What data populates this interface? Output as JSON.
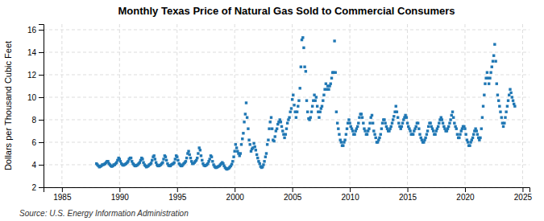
{
  "chart_data": {
    "type": "scatter",
    "title": "Monthly Texas Price of Natural Gas Sold to Commercial Consumers",
    "ylabel": "Dollars per Thousand Cubic Feet",
    "annotation": "Source: U.S. Energy Information Administration",
    "marker": "square",
    "grid": true,
    "xlim": [
      1983.4,
      2025.6
    ],
    "xticks": [
      1985,
      1990,
      1995,
      2000,
      2005,
      2010,
      2015,
      2020,
      2025
    ],
    "ylim": [
      2,
      16.5
    ],
    "yticks": [
      2,
      4,
      6,
      8,
      10,
      12,
      14,
      16
    ],
    "x": [
      1988.0,
      1988.08,
      1988.17,
      1988.25,
      1988.33,
      1988.42,
      1988.5,
      1988.58,
      1988.67,
      1988.75,
      1988.83,
      1988.92,
      1989.0,
      1989.08,
      1989.17,
      1989.25,
      1989.33,
      1989.42,
      1989.5,
      1989.58,
      1989.67,
      1989.75,
      1989.83,
      1989.92,
      1990.0,
      1990.08,
      1990.17,
      1990.25,
      1990.33,
      1990.42,
      1990.5,
      1990.58,
      1990.67,
      1990.75,
      1990.83,
      1990.92,
      1991.0,
      1991.08,
      1991.17,
      1991.25,
      1991.33,
      1991.42,
      1991.5,
      1991.58,
      1991.67,
      1991.75,
      1991.83,
      1991.92,
      1992.0,
      1992.08,
      1992.17,
      1992.25,
      1992.33,
      1992.42,
      1992.5,
      1992.58,
      1992.67,
      1992.75,
      1992.83,
      1992.92,
      1993.0,
      1993.08,
      1993.17,
      1993.25,
      1993.33,
      1993.42,
      1993.5,
      1993.58,
      1993.67,
      1993.75,
      1993.83,
      1993.92,
      1994.0,
      1994.08,
      1994.17,
      1994.25,
      1994.33,
      1994.42,
      1994.5,
      1994.58,
      1994.67,
      1994.75,
      1994.83,
      1994.92,
      1995.0,
      1995.08,
      1995.17,
      1995.25,
      1995.33,
      1995.42,
      1995.5,
      1995.58,
      1995.67,
      1995.75,
      1995.83,
      1995.92,
      1996.0,
      1996.08,
      1996.17,
      1996.25,
      1996.33,
      1996.42,
      1996.5,
      1996.58,
      1996.67,
      1996.75,
      1996.83,
      1996.92,
      1997.0,
      1997.08,
      1997.17,
      1997.25,
      1997.33,
      1997.42,
      1997.5,
      1997.58,
      1997.67,
      1997.75,
      1997.83,
      1997.92,
      1998.0,
      1998.08,
      1998.17,
      1998.25,
      1998.33,
      1998.42,
      1998.5,
      1998.58,
      1998.67,
      1998.75,
      1998.83,
      1998.92,
      1999.0,
      1999.08,
      1999.17,
      1999.25,
      1999.33,
      1999.42,
      1999.5,
      1999.58,
      1999.67,
      1999.75,
      1999.83,
      1999.92,
      2000.0,
      2000.08,
      2000.17,
      2000.25,
      2000.33,
      2000.42,
      2000.5,
      2000.58,
      2000.67,
      2000.75,
      2000.83,
      2000.92,
      2001.0,
      2001.08,
      2001.17,
      2001.25,
      2001.33,
      2001.42,
      2001.5,
      2001.58,
      2001.67,
      2001.75,
      2001.83,
      2001.92,
      2002.0,
      2002.08,
      2002.17,
      2002.25,
      2002.33,
      2002.42,
      2002.5,
      2002.58,
      2002.67,
      2002.75,
      2002.83,
      2002.92,
      2003.0,
      2003.08,
      2003.17,
      2003.25,
      2003.33,
      2003.42,
      2003.5,
      2003.58,
      2003.67,
      2003.75,
      2003.83,
      2003.92,
      2004.0,
      2004.08,
      2004.17,
      2004.25,
      2004.33,
      2004.42,
      2004.5,
      2004.58,
      2004.67,
      2004.75,
      2004.83,
      2004.92,
      2005.0,
      2005.08,
      2005.17,
      2005.25,
      2005.33,
      2005.42,
      2005.5,
      2005.58,
      2005.67,
      2005.75,
      2005.83,
      2005.92,
      2006.0,
      2006.08,
      2006.17,
      2006.25,
      2006.33,
      2006.42,
      2006.5,
      2006.58,
      2006.67,
      2006.75,
      2006.83,
      2006.92,
      2007.0,
      2007.08,
      2007.17,
      2007.25,
      2007.33,
      2007.42,
      2007.5,
      2007.58,
      2007.67,
      2007.75,
      2007.83,
      2007.92,
      2008.0,
      2008.08,
      2008.17,
      2008.25,
      2008.33,
      2008.42,
      2008.5,
      2008.58,
      2008.67,
      2008.75,
      2008.83,
      2008.92,
      2009.0,
      2009.08,
      2009.17,
      2009.25,
      2009.33,
      2009.42,
      2009.5,
      2009.58,
      2009.67,
      2009.75,
      2009.83,
      2009.92,
      2010.0,
      2010.08,
      2010.17,
      2010.25,
      2010.33,
      2010.42,
      2010.5,
      2010.58,
      2010.67,
      2010.75,
      2010.83,
      2010.92,
      2011.0,
      2011.08,
      2011.17,
      2011.25,
      2011.33,
      2011.42,
      2011.5,
      2011.58,
      2011.67,
      2011.75,
      2011.83,
      2011.92,
      2012.0,
      2012.08,
      2012.17,
      2012.25,
      2012.33,
      2012.42,
      2012.5,
      2012.58,
      2012.67,
      2012.75,
      2012.83,
      2012.92,
      2013.0,
      2013.08,
      2013.17,
      2013.25,
      2013.33,
      2013.42,
      2013.5,
      2013.58,
      2013.67,
      2013.75,
      2013.83,
      2013.92,
      2014.0,
      2014.08,
      2014.17,
      2014.25,
      2014.33,
      2014.42,
      2014.5,
      2014.58,
      2014.67,
      2014.75,
      2014.83,
      2014.92,
      2015.0,
      2015.08,
      2015.17,
      2015.25,
      2015.33,
      2015.42,
      2015.5,
      2015.58,
      2015.67,
      2015.75,
      2015.83,
      2015.92,
      2016.0,
      2016.08,
      2016.17,
      2016.25,
      2016.33,
      2016.42,
      2016.5,
      2016.58,
      2016.67,
      2016.75,
      2016.83,
      2016.92,
      2017.0,
      2017.08,
      2017.17,
      2017.25,
      2017.33,
      2017.42,
      2017.5,
      2017.58,
      2017.67,
      2017.75,
      2017.83,
      2017.92,
      2018.0,
      2018.08,
      2018.17,
      2018.25,
      2018.33,
      2018.42,
      2018.5,
      2018.58,
      2018.67,
      2018.75,
      2018.83,
      2018.92,
      2019.0,
      2019.08,
      2019.17,
      2019.25,
      2019.33,
      2019.42,
      2019.5,
      2019.58,
      2019.67,
      2019.75,
      2019.83,
      2019.92,
      2020.0,
      2020.08,
      2020.17,
      2020.25,
      2020.33,
      2020.42,
      2020.5,
      2020.58,
      2020.67,
      2020.75,
      2020.83,
      2020.92,
      2021.0,
      2021.08,
      2021.17,
      2021.25,
      2021.33,
      2021.42,
      2021.5,
      2021.58,
      2021.67,
      2021.75,
      2021.83,
      2021.92,
      2022.0,
      2022.08,
      2022.17,
      2022.25,
      2022.33,
      2022.42,
      2022.5,
      2022.58,
      2022.67,
      2022.75,
      2022.83,
      2022.92,
      2023.0,
      2023.08,
      2023.17,
      2023.25,
      2023.33,
      2023.42,
      2023.5,
      2023.58,
      2023.67,
      2023.75,
      2023.83,
      2023.92,
      2024.0,
      2024.08,
      2024.17,
      2024.25,
      2024.33
    ],
    "values": [
      4.1,
      4.0,
      3.9,
      3.8,
      3.85,
      3.9,
      4.0,
      4.0,
      4.05,
      4.1,
      4.2,
      4.3,
      4.3,
      4.1,
      4.0,
      3.9,
      3.85,
      3.9,
      4.0,
      4.0,
      4.1,
      4.2,
      4.4,
      4.6,
      4.5,
      4.3,
      4.1,
      4.0,
      3.95,
      4.0,
      4.05,
      4.1,
      4.2,
      4.3,
      4.5,
      4.6,
      4.6,
      4.3,
      4.1,
      4.0,
      3.9,
      3.9,
      3.95,
      4.0,
      4.1,
      4.2,
      4.4,
      4.6,
      4.5,
      4.2,
      4.0,
      3.9,
      3.8,
      3.85,
      3.9,
      4.0,
      4.05,
      4.15,
      4.4,
      4.7,
      4.8,
      4.5,
      4.2,
      4.0,
      3.9,
      3.9,
      3.95,
      4.0,
      4.1,
      4.2,
      4.5,
      4.8,
      4.7,
      4.4,
      4.1,
      3.95,
      3.9,
      3.9,
      4.0,
      4.05,
      4.1,
      4.2,
      4.5,
      4.8,
      4.7,
      4.4,
      4.1,
      4.0,
      3.9,
      3.9,
      4.0,
      4.1,
      4.2,
      4.3,
      4.6,
      5.0,
      5.2,
      4.9,
      4.6,
      4.3,
      4.1,
      4.1,
      4.2,
      4.3,
      4.4,
      4.6,
      5.0,
      5.5,
      5.3,
      4.8,
      4.4,
      4.1,
      3.95,
      3.9,
      3.95,
      4.0,
      4.1,
      4.3,
      4.5,
      4.8,
      4.7,
      4.3,
      4.0,
      3.85,
      3.75,
      3.75,
      3.8,
      3.85,
      3.9,
      4.0,
      4.1,
      4.2,
      4.1,
      3.9,
      3.75,
      3.65,
      3.6,
      3.65,
      3.7,
      3.8,
      3.9,
      4.05,
      4.3,
      4.7,
      5.2,
      5.8,
      5.5,
      5.2,
      5.0,
      4.8,
      5.0,
      5.8,
      6.3,
      6.8,
      7.8,
      8.5,
      9.5,
      8.2,
      7.2,
      6.2,
      5.8,
      5.2,
      5.4,
      5.5,
      5.9,
      5.6,
      5.3,
      4.9,
      4.6,
      4.3,
      4.1,
      3.85,
      3.75,
      3.8,
      4.0,
      4.3,
      4.7,
      5.0,
      5.8,
      6.2,
      7.2,
      7.8,
      8.2,
      7.2,
      6.2,
      6.1,
      6.5,
      7.0,
      7.2,
      7.6,
      7.8,
      8.0,
      7.8,
      7.4,
      7.0,
      6.7,
      6.4,
      6.7,
      7.2,
      7.7,
      8.0,
      8.2,
      8.7,
      9.0,
      9.8,
      10.2,
      9.3,
      8.7,
      8.2,
      8.7,
      9.2,
      9.7,
      10.8,
      12.7,
      15.1,
      15.3,
      14.4,
      12.7,
      12.3,
      9.7,
      8.7,
      8.1,
      8.0,
      8.2,
      8.7,
      9.2,
      9.7,
      10.2,
      9.7,
      10.0,
      9.2,
      8.7,
      8.2,
      8.7,
      9.0,
      9.2,
      9.7,
      10.2,
      10.7,
      11.2,
      10.7,
      11.0,
      10.7,
      11.0,
      11.2,
      11.7,
      12.2,
      12.2,
      15.0,
      12.2,
      8.7,
      7.7,
      7.2,
      6.7,
      6.2,
      6.0,
      5.7,
      5.7,
      6.0,
      6.2,
      6.7,
      7.2,
      7.7,
      8.0,
      7.7,
      7.4,
      7.2,
      7.0,
      6.7,
      6.7,
      7.0,
      7.2,
      7.4,
      7.7,
      8.2,
      8.5,
      8.5,
      8.2,
      7.7,
      7.2,
      7.0,
      6.7,
      6.7,
      7.0,
      7.2,
      7.7,
      8.2,
      8.4,
      7.7,
      7.0,
      6.7,
      6.4,
      6.0,
      6.0,
      6.2,
      6.4,
      6.7,
      7.2,
      7.7,
      8.0,
      8.0,
      7.7,
      7.4,
      7.2,
      7.0,
      7.0,
      7.2,
      7.4,
      7.7,
      8.0,
      8.3,
      8.7,
      9.2,
      8.7,
      8.2,
      7.7,
      7.4,
      7.2,
      7.4,
      7.7,
      8.0,
      8.2,
      8.4,
      8.2,
      7.7,
      7.4,
      7.2,
      7.0,
      6.7,
      6.7,
      6.7,
      7.0,
      7.2,
      7.4,
      7.7,
      7.7,
      7.2,
      6.7,
      6.4,
      6.2,
      6.0,
      6.0,
      6.2,
      6.4,
      6.7,
      7.0,
      7.4,
      7.7,
      7.7,
      7.4,
      7.2,
      7.0,
      6.7,
      6.7,
      7.0,
      7.2,
      7.4,
      7.7,
      8.0,
      8.2,
      8.0,
      7.7,
      7.4,
      7.2,
      7.0,
      7.0,
      7.2,
      7.4,
      7.7,
      8.0,
      8.4,
      8.7,
      8.2,
      7.7,
      7.4,
      7.2,
      6.7,
      6.4,
      6.4,
      6.7,
      7.0,
      7.2,
      7.4,
      7.4,
      7.2,
      6.7,
      6.2,
      6.0,
      5.7,
      5.7,
      6.0,
      6.2,
      6.4,
      6.7,
      7.0,
      7.2,
      7.0,
      6.7,
      6.4,
      6.2,
      6.4,
      7.2,
      8.2,
      9.2,
      10.2,
      11.2,
      11.7,
      12.2,
      11.7,
      11.2,
      11.7,
      12.2,
      12.7,
      13.2,
      13.7,
      14.7,
      13.2,
      11.2,
      10.2,
      9.7,
      9.2,
      8.7,
      8.2,
      7.7,
      7.4,
      7.7,
      8.2,
      8.7,
      9.2,
      9.7,
      10.2,
      10.7,
      10.4,
      10.0,
      9.7,
      9.4,
      9.2
    ]
  }
}
